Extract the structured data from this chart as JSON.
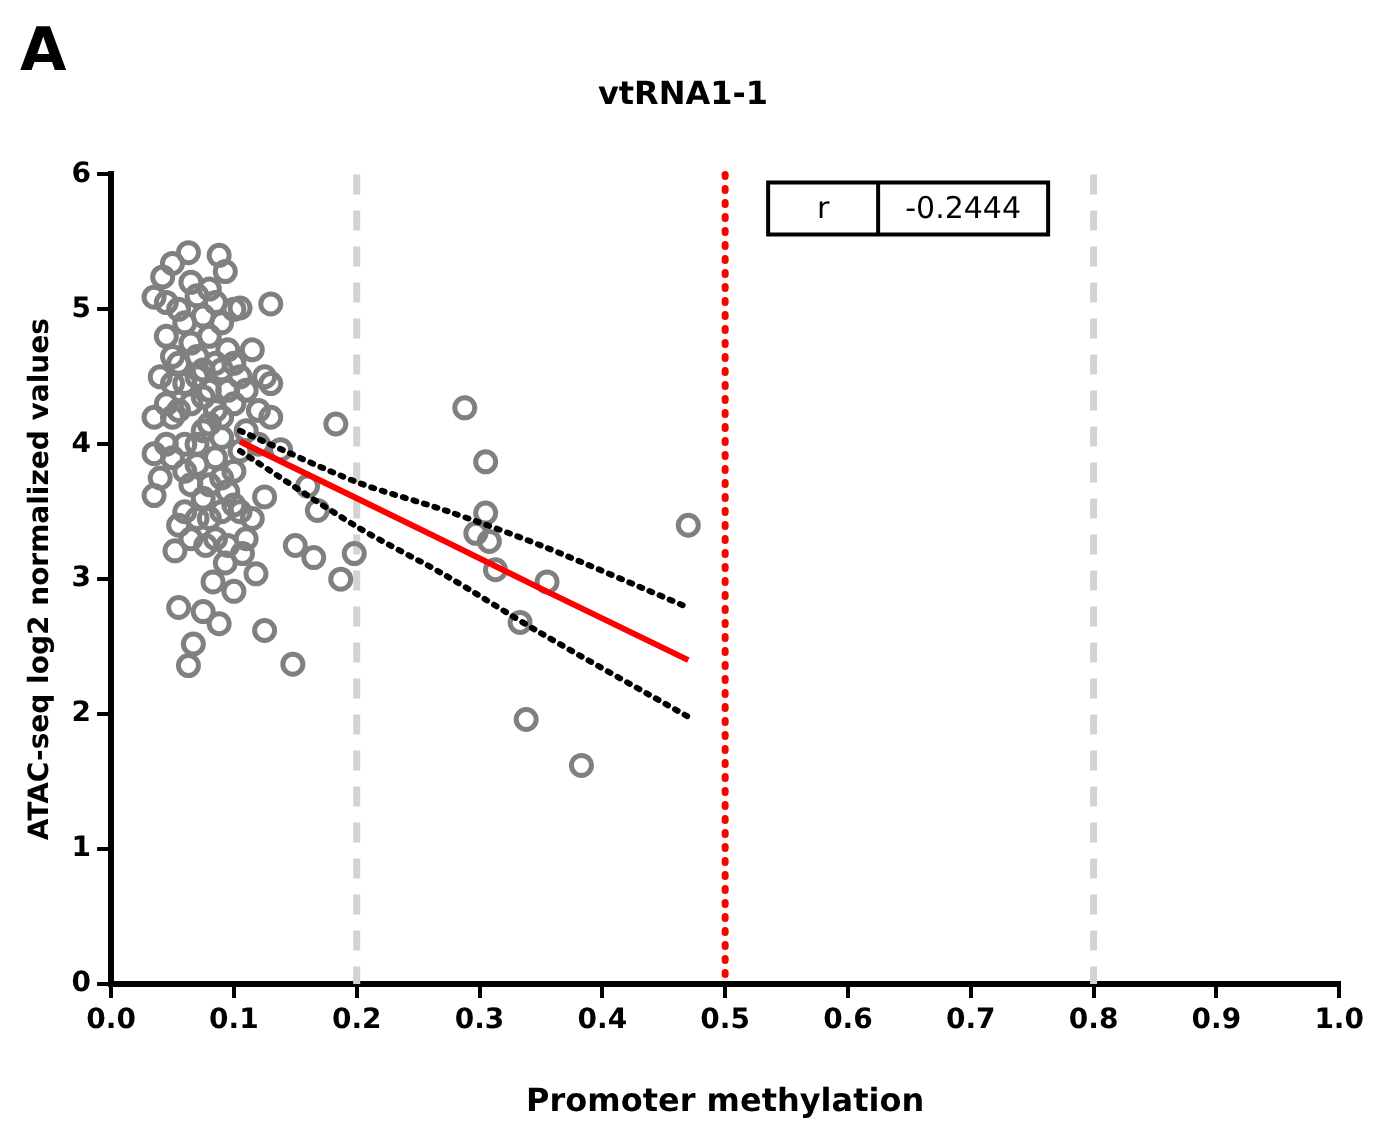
{
  "chart_data": {
    "type": "scatter",
    "title": "vtRNA1-1",
    "xlabel": "Promoter methylation",
    "ylabel": "ATAC-seq log2 normalized values",
    "annotations": [
      "A",
      "r",
      "-0.2444"
    ],
    "xlim": [
      0,
      1
    ],
    "xticks": [
      {
        "value": 0,
        "label": "0.0"
      },
      0.1,
      0.2,
      0.3,
      0.4,
      0.5,
      0.6,
      0.7,
      0.8,
      0.9,
      {
        "value": 1,
        "label": "1.0"
      }
    ],
    "ylim": [
      0,
      6
    ],
    "yticks": [
      0,
      1,
      2,
      3,
      4,
      5,
      6
    ],
    "grid": false,
    "legend": false,
    "ref_lines": [
      {
        "axis": "x",
        "value": 0.2,
        "color": "#d3d3d3",
        "line_style": "dashed"
      },
      {
        "axis": "x",
        "value": 0.5,
        "color": "#ff0000",
        "line_style": "dotted"
      },
      {
        "axis": "x",
        "value": 0.8,
        "color": "#d3d3d3",
        "line_style": "dashed"
      }
    ],
    "series": [
      {
        "color": "#808080",
        "marker": "circle",
        "x": [
          0.183,
          0.288,
          0.305,
          0.305,
          0.308,
          0.313,
          0.297,
          0.355,
          0.333,
          0.338,
          0.383,
          0.47,
          0.198,
          0.187,
          0.165,
          0.15,
          0.168,
          0.16,
          0.138,
          0.125,
          0.125,
          0.148,
          0.13,
          0.13,
          0.107,
          0.077,
          0.063,
          0.088,
          0.05,
          0.093,
          0.042,
          0.105,
          0.035,
          0.055,
          0.067,
          0.063,
          0.088,
          0.075,
          0.052,
          0.093,
          0.118,
          0.1,
          0.083,
          0.04,
          0.045,
          0.05,
          0.05,
          0.055,
          0.06,
          0.06,
          0.065,
          0.065,
          0.07,
          0.07,
          0.075,
          0.075,
          0.08,
          0.08,
          0.085,
          0.085,
          0.09,
          0.09,
          0.095,
          0.1,
          0.1,
          0.105,
          0.11,
          0.045,
          0.05,
          0.055,
          0.06,
          0.065,
          0.07,
          0.075,
          0.08,
          0.085,
          0.09,
          0.095,
          0.1,
          0.105,
          0.11,
          0.115,
          0.12,
          0.04,
          0.045,
          0.055,
          0.06,
          0.07,
          0.075,
          0.08,
          0.085,
          0.09,
          0.095,
          0.1,
          0.05,
          0.065,
          0.07,
          0.08,
          0.09,
          0.095,
          0.1,
          0.105,
          0.045,
          0.055,
          0.06,
          0.065,
          0.07,
          0.075,
          0.08,
          0.085,
          0.09,
          0.12,
          0.115,
          0.125,
          0.11,
          0.13,
          0.035,
          0.035,
          0.035
        ],
        "values": [
          4.15,
          4.27,
          3.87,
          3.49,
          3.28,
          3.07,
          3.34,
          2.98,
          2.68,
          1.96,
          1.62,
          3.4,
          3.19,
          3.0,
          3.16,
          3.25,
          3.51,
          3.69,
          3.96,
          3.61,
          2.62,
          2.37,
          4.45,
          5.04,
          3.19,
          3.25,
          5.42,
          5.4,
          5.34,
          5.28,
          5.24,
          5.01,
          5.09,
          2.79,
          2.52,
          2.36,
          2.67,
          2.76,
          3.21,
          3.12,
          3.04,
          2.91,
          2.98,
          4.5,
          4.8,
          4.2,
          3.9,
          4.6,
          4.0,
          4.9,
          4.3,
          3.7,
          4.5,
          5.1,
          4.1,
          3.6,
          4.4,
          4.8,
          3.9,
          4.6,
          4.2,
          3.5,
          4.7,
          4.3,
          3.8,
          4.5,
          4.1,
          4.0,
          4.65,
          5.0,
          3.5,
          4.75,
          3.85,
          4.35,
          3.45,
          5.05,
          4.9,
          3.65,
          4.6,
          3.95,
          4.4,
          4.7,
          4.25,
          3.75,
          4.3,
          3.4,
          4.45,
          4.0,
          4.95,
          4.15,
          3.3,
          4.05,
          4.4,
          3.55,
          4.45,
          3.3,
          4.65,
          3.7,
          3.75,
          3.25,
          5.0,
          3.5,
          5.05,
          4.25,
          3.8,
          5.2,
          3.45,
          4.55,
          5.15,
          4.25,
          4.55,
          4.0,
          3.45,
          4.5,
          3.3,
          4.2,
          4.2,
          3.93,
          3.62
        ]
      },
      {
        "type": "line",
        "color": "#ff0000",
        "marker": "none",
        "line_style": "solid",
        "x": [
          0.105,
          0.2,
          0.272,
          0.35,
          0.47
        ],
        "values": [
          4.02,
          3.6,
          3.28,
          2.93,
          2.4
        ]
      },
      {
        "type": "line",
        "color": "#000000",
        "marker": "none",
        "line_style": "dotted",
        "x": [
          0.105,
          0.2,
          0.272,
          0.35,
          0.47
        ],
        "values": [
          4.1,
          3.72,
          3.51,
          3.25,
          2.79
        ]
      },
      {
        "type": "line",
        "color": "#000000",
        "marker": "none",
        "line_style": "dotted",
        "x": [
          0.105,
          0.2,
          0.272,
          0.35,
          0.47
        ],
        "values": [
          3.95,
          3.39,
          3.03,
          2.6,
          1.98
        ]
      }
    ]
  }
}
